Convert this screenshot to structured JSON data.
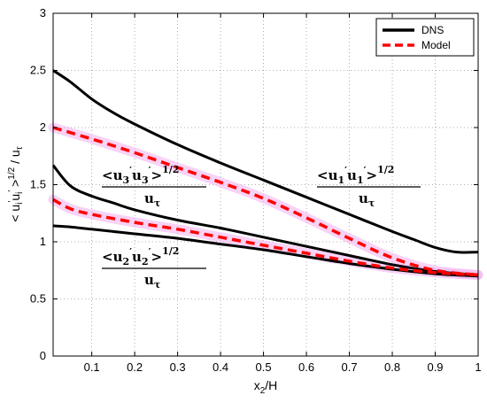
{
  "chart_data": {
    "type": "line",
    "xlabel": "x₂/H",
    "ylabel": "< uᵢ′uᵢ′ >¹ᐟ² / uτ",
    "xlim": [
      0.01,
      1.0
    ],
    "ylim": [
      0,
      3
    ],
    "x_ticks": [
      "0.1",
      "0.2",
      "0.3",
      "0.4",
      "0.5",
      "0.6",
      "0.7",
      "0.8",
      "0.9",
      "1"
    ],
    "y_ticks": [
      "0",
      "0.5",
      "1",
      "1.5",
      "2",
      "2.5",
      "3"
    ],
    "grid": true,
    "legend_position": "top-right",
    "legend": [
      "DNS",
      "Model"
    ],
    "annotations": [
      {
        "name": "u3-annotation",
        "numerator": "<u₃′u₃′>¹ᐟ²",
        "denominator": "uτ"
      },
      {
        "name": "u1-annotation",
        "numerator": "<u₁′u₁′>¹ᐟ²",
        "denominator": "uτ"
      },
      {
        "name": "u2-annotation",
        "numerator": "<u₂′u₂′>¹ᐟ²",
        "denominator": "uτ"
      }
    ],
    "series": [
      {
        "legend": "DNS",
        "component": "u1",
        "color": "#000000",
        "x": [
          0.01,
          0.05,
          0.1,
          0.15,
          0.2,
          0.3,
          0.4,
          0.5,
          0.6,
          0.7,
          0.8,
          0.85,
          0.9,
          0.95,
          1.0
        ],
        "y": [
          2.5,
          2.4,
          2.25,
          2.13,
          2.03,
          1.85,
          1.69,
          1.54,
          1.39,
          1.24,
          1.09,
          1.02,
          0.95,
          0.91,
          0.91
        ]
      },
      {
        "legend": "DNS",
        "component": "u3",
        "color": "#000000",
        "x": [
          0.01,
          0.05,
          0.1,
          0.15,
          0.2,
          0.3,
          0.4,
          0.5,
          0.6,
          0.7,
          0.8,
          0.9,
          1.0
        ],
        "y": [
          1.67,
          1.49,
          1.4,
          1.34,
          1.28,
          1.19,
          1.12,
          1.04,
          0.96,
          0.88,
          0.8,
          0.74,
          0.71
        ]
      },
      {
        "legend": "DNS",
        "component": "u2",
        "color": "#000000",
        "x": [
          0.01,
          0.05,
          0.1,
          0.2,
          0.3,
          0.4,
          0.5,
          0.6,
          0.7,
          0.8,
          0.9,
          1.0
        ],
        "y": [
          1.14,
          1.13,
          1.11,
          1.07,
          1.03,
          0.98,
          0.93,
          0.87,
          0.81,
          0.76,
          0.72,
          0.7
        ]
      },
      {
        "legend": "Model",
        "component": "u1",
        "color": "#ff0000",
        "x": [
          0.01,
          0.1,
          0.2,
          0.3,
          0.4,
          0.5,
          0.6,
          0.7,
          0.8,
          0.9,
          1.0
        ],
        "y": [
          2.0,
          1.9,
          1.78,
          1.65,
          1.52,
          1.38,
          1.21,
          1.03,
          0.86,
          0.75,
          0.71
        ]
      },
      {
        "legend": "Model",
        "component": "u2/u3",
        "color": "#ff0000",
        "x": [
          0.01,
          0.05,
          0.1,
          0.2,
          0.3,
          0.4,
          0.5,
          0.6,
          0.7,
          0.8,
          0.9,
          1.0
        ],
        "y": [
          1.37,
          1.29,
          1.24,
          1.17,
          1.11,
          1.04,
          0.97,
          0.9,
          0.83,
          0.77,
          0.73,
          0.71
        ]
      }
    ]
  }
}
